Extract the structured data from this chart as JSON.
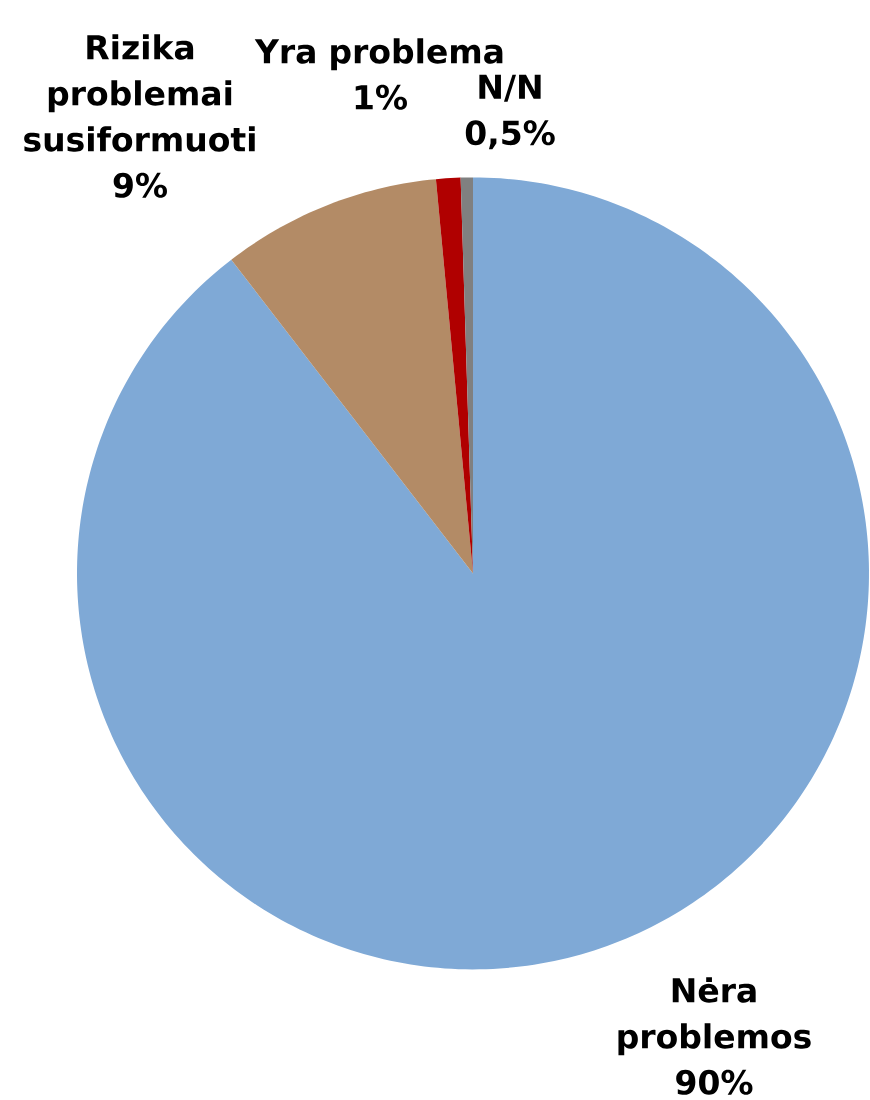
{
  "chart_data": {
    "type": "pie",
    "categories": [
      "Nėra problemos",
      "Rizika problemai susiformuoti",
      "Yra problema",
      "N/N"
    ],
    "values": [
      90,
      9,
      1,
      0.5
    ],
    "value_labels": [
      "90%",
      "9%",
      "1%",
      "0,5%"
    ],
    "colors": [
      "#7fa9d6",
      "#b38b66",
      "#b00000",
      "#808080"
    ]
  }
}
